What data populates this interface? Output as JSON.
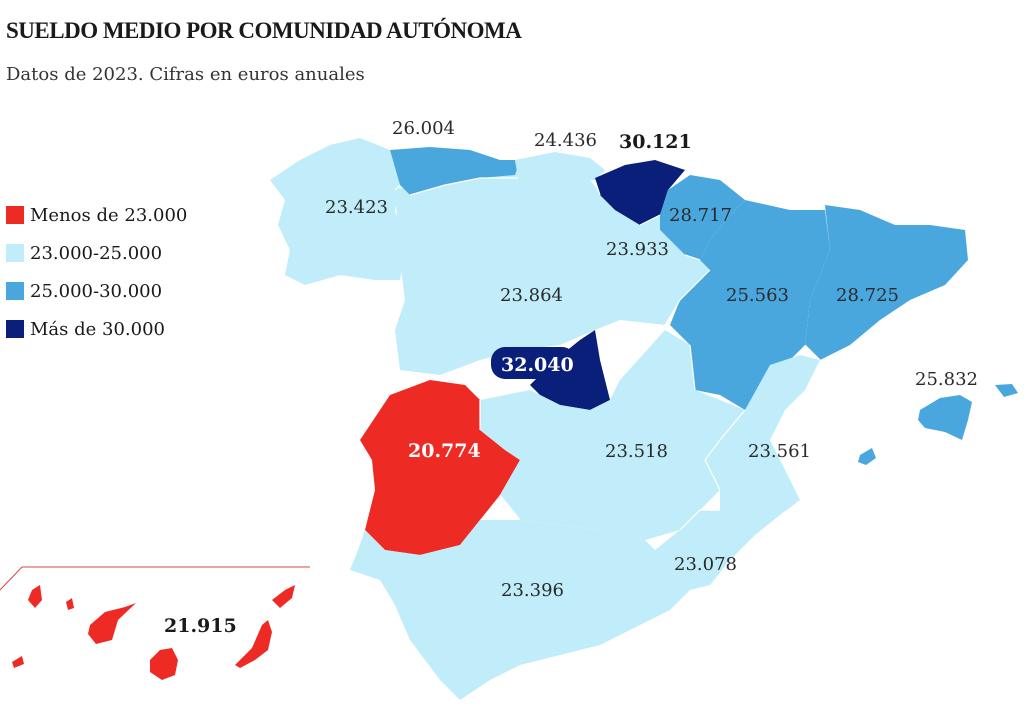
{
  "title": "SUELDO MEDIO POR COMUNIDAD AUTÓNOMA",
  "subtitle": "Datos de 2023. Cifras en euros anuales",
  "colors": {
    "low": "#ee2a24",
    "mid": "#c0edf9",
    "high": "#4aa7de",
    "top": "#0a1f7a"
  },
  "legend": [
    {
      "label": "Menos de 23.000",
      "color": "#ee2a24"
    },
    {
      "label": "23.000-25.000",
      "color": "#c0edf9"
    },
    {
      "label": "25.000-30.000",
      "color": "#4aa7de"
    },
    {
      "label": "Más de 30.000",
      "color": "#0a1f7a"
    }
  ],
  "regions": {
    "galicia": "23.423",
    "asturias": "26.004",
    "cantabria": "24.436",
    "pais_vasco": "30.121",
    "navarra": "28.717",
    "la_rioja": "23.933",
    "castilla_leon": "23.864",
    "aragon": "25.563",
    "cataluna": "28.725",
    "madrid": "32.040",
    "extremadura": "20.774",
    "castilla_la_mancha": "23.518",
    "valencia": "23.561",
    "baleares": "25.832",
    "murcia": "23.078",
    "andalucia": "23.396",
    "canarias": "21.915"
  }
}
